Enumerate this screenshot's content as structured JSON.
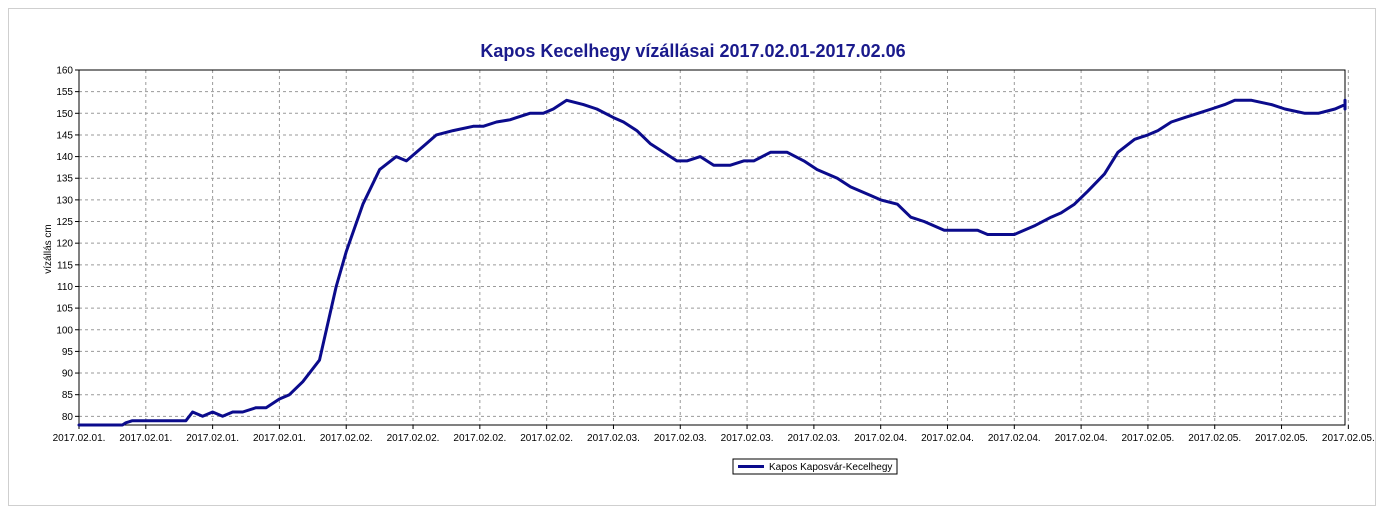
{
  "chart_data": {
    "type": "line",
    "title": "Kapos Kecelhegy vízállásai 2017.02.01-2017.02.06",
    "ylabel": "vízállás cm",
    "xlabel": "",
    "ylim": [
      78,
      160
    ],
    "yticks": [
      80,
      85,
      90,
      95,
      100,
      105,
      110,
      115,
      120,
      125,
      130,
      135,
      140,
      145,
      150,
      155,
      160
    ],
    "x_tick_labels": [
      "2017.02.01.",
      "2017.02.01.",
      "2017.02.01.",
      "2017.02.01.",
      "2017.02.02.",
      "2017.02.02.",
      "2017.02.02.",
      "2017.02.02.",
      "2017.02.03.",
      "2017.02.03.",
      "2017.02.03.",
      "2017.02.03.",
      "2017.02.04.",
      "2017.02.04.",
      "2017.02.04.",
      "2017.02.04.",
      "2017.02.05.",
      "2017.02.05.",
      "2017.02.05.",
      "2017.02.05."
    ],
    "grid": true,
    "legend_position": "bottom-center",
    "series": [
      {
        "name": "Kapos Kaposvár-Kecelhegy",
        "color": "#0b0b8c",
        "x": [
          0.0,
          0.65,
          0.7,
          0.8,
          1.0,
          1.2,
          1.6,
          1.7,
          1.85,
          2.0,
          2.15,
          2.3,
          2.45,
          2.65,
          2.8,
          3.0,
          3.15,
          3.35,
          3.6,
          3.85,
          4.0,
          4.25,
          4.5,
          4.75,
          4.9,
          5.05,
          5.2,
          5.35,
          5.6,
          5.9,
          6.05,
          6.25,
          6.45,
          6.55,
          6.75,
          6.95,
          7.1,
          7.3,
          7.55,
          7.75,
          8.0,
          8.15,
          8.35,
          8.55,
          8.75,
          8.95,
          9.1,
          9.3,
          9.5,
          9.75,
          9.95,
          10.1,
          10.35,
          10.6,
          10.85,
          11.05,
          11.35,
          11.55,
          11.85,
          12.0,
          12.25,
          12.45,
          12.65,
          12.95,
          13.25,
          13.45,
          13.6,
          13.8,
          14.0,
          14.3,
          14.55,
          14.7,
          14.9,
          15.1,
          15.35,
          15.55,
          15.8,
          16.0,
          16.15,
          16.35,
          16.55,
          16.75,
          16.95,
          17.15,
          17.3,
          17.55,
          17.85,
          18.05,
          18.35,
          18.55,
          18.8,
          19.1,
          19.3,
          19.55,
          19.72,
          19.9,
          20.1
        ],
        "values": [
          78,
          78,
          78.5,
          79,
          79,
          79,
          79,
          81,
          80,
          81,
          80,
          81,
          81,
          82,
          82,
          84,
          85,
          88,
          93,
          110,
          118,
          129,
          137,
          140,
          139,
          141,
          143,
          145,
          146,
          147,
          147,
          148,
          148.5,
          149,
          150,
          150,
          151,
          153,
          152,
          151,
          149,
          148,
          146,
          143,
          141,
          139,
          139,
          140,
          138,
          138,
          139,
          139,
          141,
          141,
          139,
          137,
          135,
          133,
          131,
          130,
          129,
          126,
          125,
          123,
          123,
          123,
          122,
          122,
          122,
          124,
          126,
          127,
          129,
          132,
          136,
          141,
          144,
          145,
          146,
          148,
          149,
          150,
          151,
          152,
          153,
          153,
          152,
          151,
          150,
          150,
          151,
          152,
          153,
          153,
          152,
          151,
          151
        ]
      }
    ]
  }
}
